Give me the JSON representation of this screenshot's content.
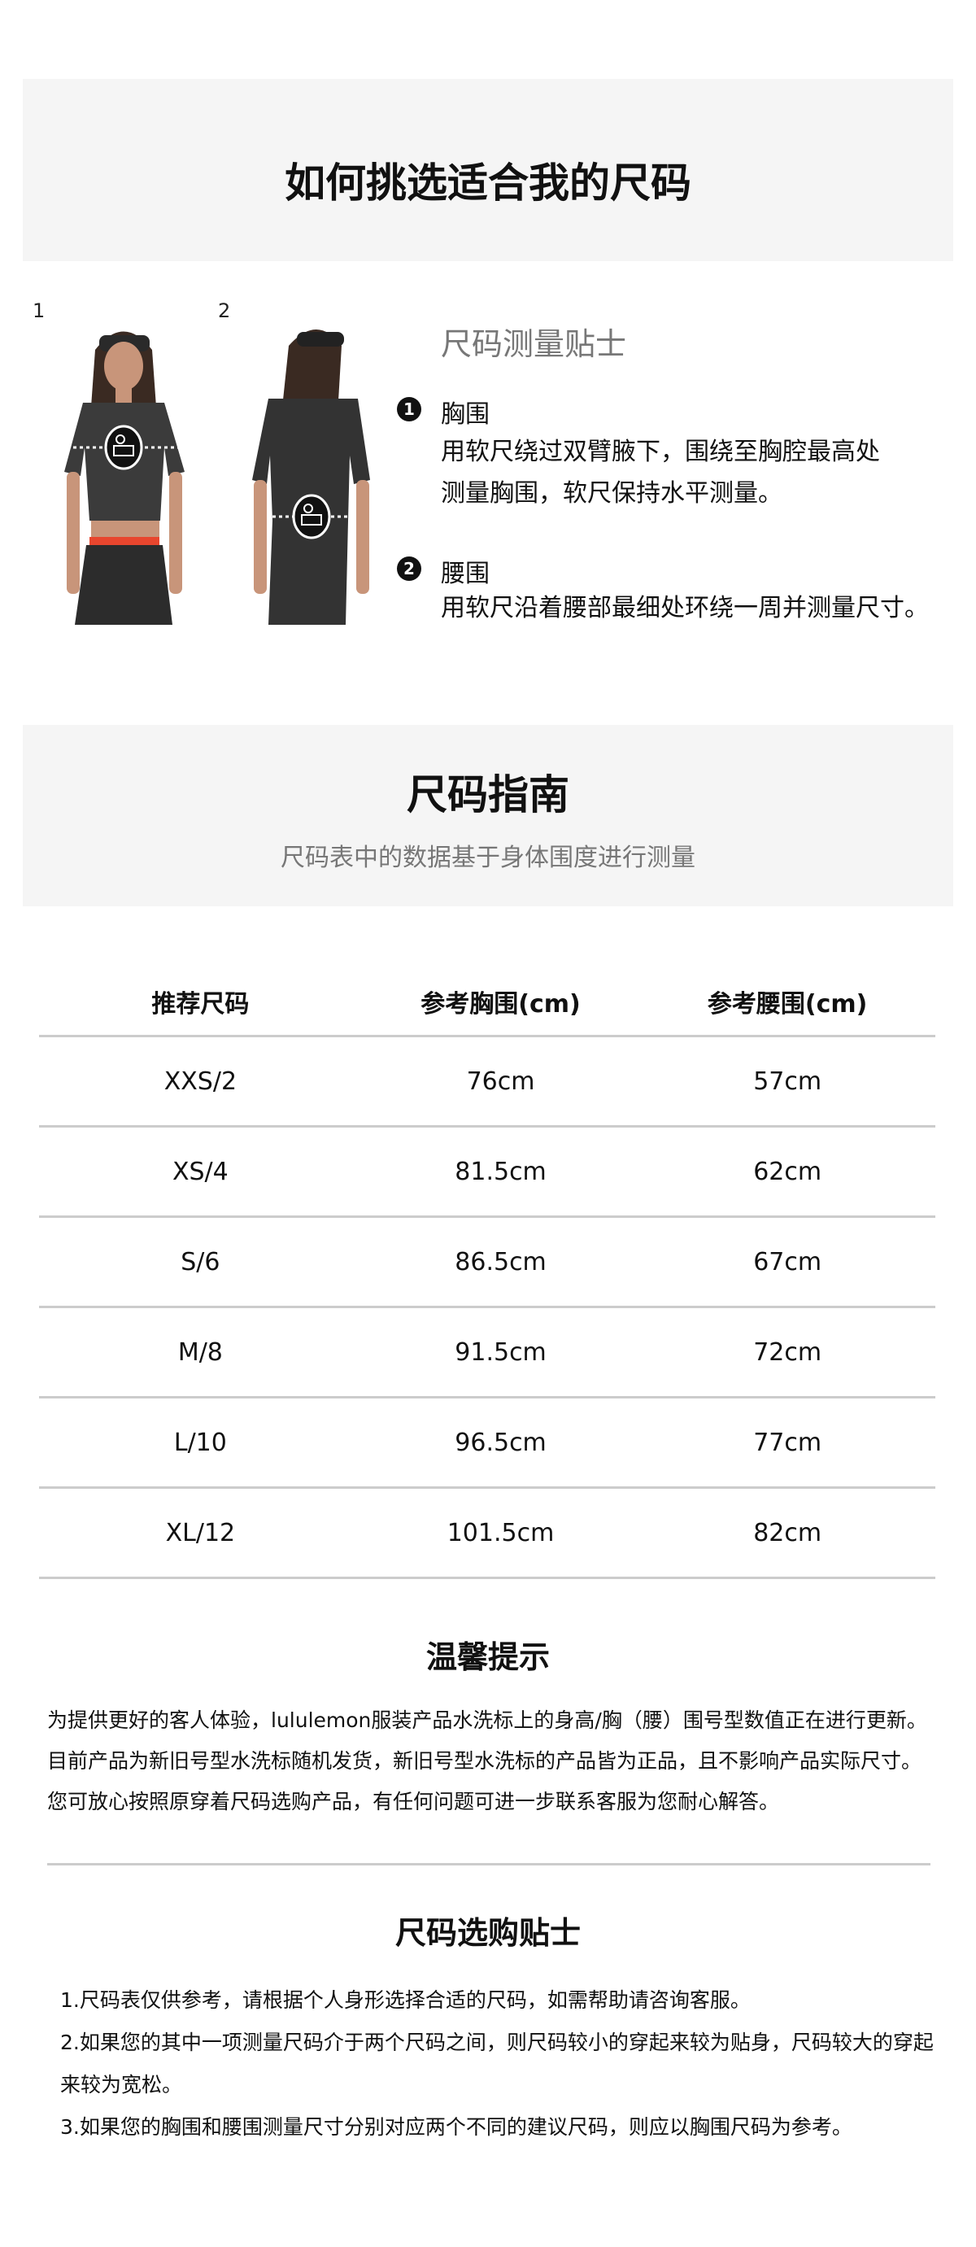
{
  "header": {
    "title": "如何挑选适合我的尺码"
  },
  "figures": {
    "labels": [
      "1",
      "2"
    ],
    "icon": "measuring-tape-icon"
  },
  "measure_tips": {
    "title": "尺码测量贴士",
    "items": [
      {
        "bullet": "1",
        "label": "胸围",
        "lines": [
          "用软尺绕过双臂腋下，围绕至胸腔最高处",
          "测量胸围，软尺保持水平测量。"
        ]
      },
      {
        "bullet": "2",
        "label": "腰围",
        "lines": [
          "用软尺沿着腰部最细处环绕一周并测量尺寸。"
        ]
      }
    ]
  },
  "size_guide": {
    "title": "尺码指南",
    "subtitle": "尺码表中的数据基于身体围度进行测量"
  },
  "table": {
    "headers": [
      "推荐尺码",
      "参考胸围(cm)",
      "参考腰围(cm)"
    ],
    "rows": [
      [
        "XXS/2",
        "76cm",
        "57cm"
      ],
      [
        "XS/4",
        "81.5cm",
        "62cm"
      ],
      [
        "S/6",
        "86.5cm",
        "67cm"
      ],
      [
        "M/8",
        "91.5cm",
        "72cm"
      ],
      [
        "L/10",
        "96.5cm",
        "77cm"
      ],
      [
        "XL/12",
        "101.5cm",
        "82cm"
      ]
    ]
  },
  "notice": {
    "title": "温馨提示",
    "text": "为提供更好的客人体验，lululemon服装产品水洗标上的身高/胸（腰）围号型数值正在进行更新。目前产品为新旧号型水洗标随机发货，新旧号型水洗标的产品皆为正品，且不影响产品实际尺寸。您可放心按照原穿着尺码选购产品，有任何问题可进一步联系客服为您耐心解答。"
  },
  "buying_tips": {
    "title": "尺码选购贴士",
    "items": [
      "1.尺码表仅供参考，请根据个人身形选择合适的尺码，如需帮助请咨询客服。",
      "2.如果您的其中一项测量尺码介于两个尺码之间，则尺码较小的穿起来较为贴身，尺码较大的穿起来较为宽松。",
      "3.如果您的胸围和腰围测量尺寸分别对应两个不同的建议尺码，则应以胸围尺码为参考。"
    ]
  },
  "colors": {
    "panel": "#f5f5f5",
    "divider": "#cccccc",
    "muted": "#777777",
    "waistband": "#e8462e"
  }
}
